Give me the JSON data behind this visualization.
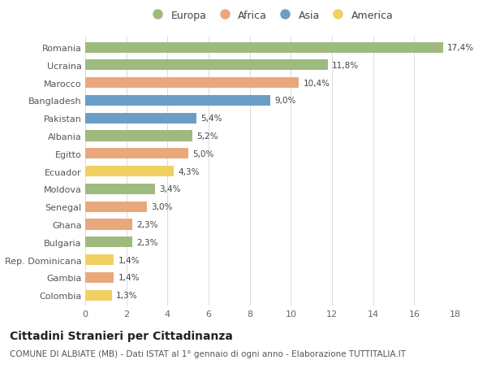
{
  "categories": [
    "Romania",
    "Ucraina",
    "Marocco",
    "Bangladesh",
    "Pakistan",
    "Albania",
    "Egitto",
    "Ecuador",
    "Moldova",
    "Senegal",
    "Ghana",
    "Bulgaria",
    "Rep. Dominicana",
    "Gambia",
    "Colombia"
  ],
  "values": [
    17.4,
    11.8,
    10.4,
    9.0,
    5.4,
    5.2,
    5.0,
    4.3,
    3.4,
    3.0,
    2.3,
    2.3,
    1.4,
    1.4,
    1.3
  ],
  "labels": [
    "17,4%",
    "11,8%",
    "10,4%",
    "9,0%",
    "5,4%",
    "5,2%",
    "5,0%",
    "4,3%",
    "3,4%",
    "3,0%",
    "2,3%",
    "2,3%",
    "1,4%",
    "1,4%",
    "1,3%"
  ],
  "continent": [
    "Europa",
    "Europa",
    "Africa",
    "Asia",
    "Asia",
    "Europa",
    "Africa",
    "America",
    "Europa",
    "Africa",
    "Africa",
    "Europa",
    "America",
    "Africa",
    "America"
  ],
  "colors": {
    "Europa": "#9eba7e",
    "Africa": "#e8a87c",
    "Asia": "#6b9ec7",
    "America": "#f0d060"
  },
  "legend_order": [
    "Europa",
    "Africa",
    "Asia",
    "America"
  ],
  "xlim": [
    0,
    18
  ],
  "xticks": [
    0,
    2,
    4,
    6,
    8,
    10,
    12,
    14,
    16,
    18
  ],
  "title": "Cittadini Stranieri per Cittadinanza",
  "subtitle": "COMUNE DI ALBIATE (MB) - Dati ISTAT al 1° gennaio di ogni anno - Elaborazione TUTTITALIA.IT",
  "background_color": "#ffffff",
  "grid_color": "#dddddd",
  "bar_height": 0.6,
  "label_fontsize": 7.5,
  "ytick_fontsize": 8,
  "xtick_fontsize": 8,
  "title_fontsize": 10,
  "subtitle_fontsize": 7.5,
  "legend_fontsize": 9
}
